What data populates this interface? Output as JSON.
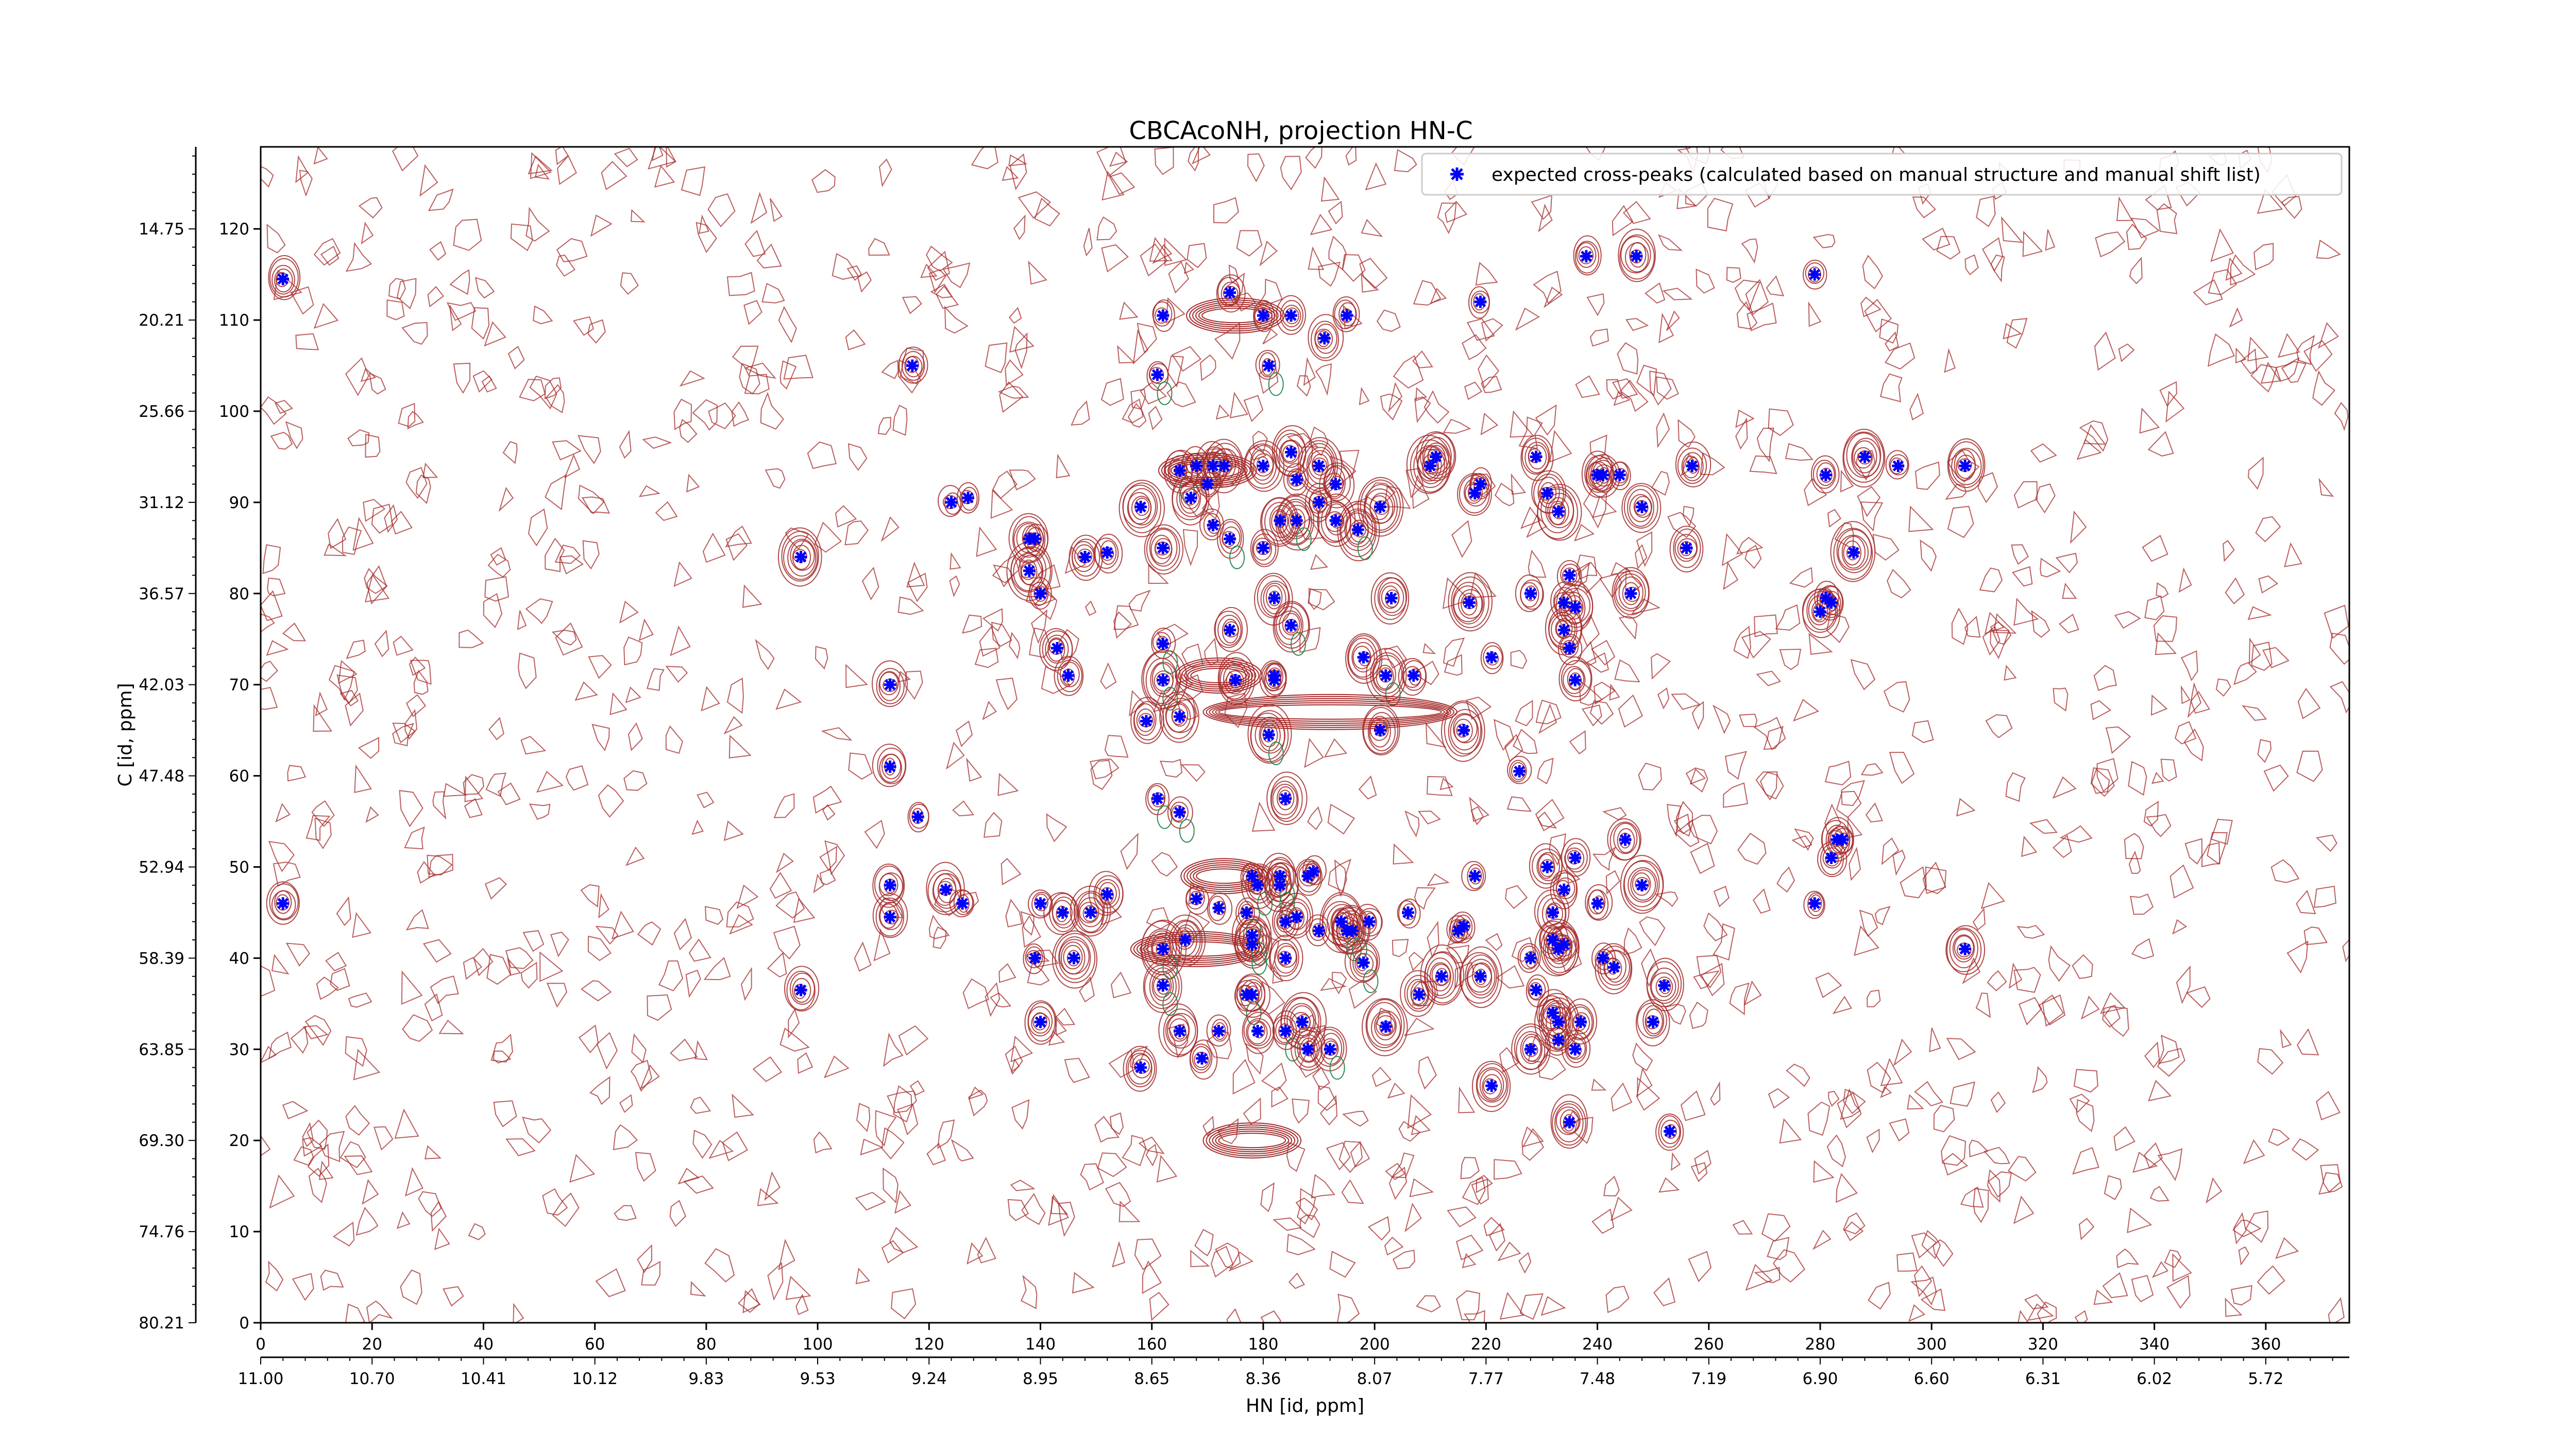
{
  "chart_data": {
    "type": "scatter",
    "title": "CBCAcoNH, projection HN-C",
    "xlabel": "HN [id, ppm]",
    "ylabel": "C [id, ppm]",
    "xlim": [
      0,
      375
    ],
    "ylim": [
      0,
      129
    ],
    "x_ticks": [
      0,
      20,
      40,
      60,
      80,
      100,
      120,
      140,
      160,
      180,
      200,
      220,
      240,
      260,
      280,
      300,
      320,
      340,
      360
    ],
    "y_ticks": [
      0,
      10,
      20,
      30,
      40,
      50,
      60,
      70,
      80,
      90,
      100,
      110,
      120
    ],
    "x_secondary_ticks": [
      {
        "x": 0,
        "label": "11.00"
      },
      {
        "x": 20,
        "label": "10.70"
      },
      {
        "x": 40,
        "label": "10.41"
      },
      {
        "x": 60,
        "label": "10.12"
      },
      {
        "x": 80,
        "label": "9.83"
      },
      {
        "x": 100,
        "label": "9.53"
      },
      {
        "x": 120,
        "label": "9.24"
      },
      {
        "x": 140,
        "label": "8.95"
      },
      {
        "x": 160,
        "label": "8.65"
      },
      {
        "x": 180,
        "label": "8.36"
      },
      {
        "x": 200,
        "label": "8.07"
      },
      {
        "x": 220,
        "label": "7.77"
      },
      {
        "x": 240,
        "label": "7.48"
      },
      {
        "x": 260,
        "label": "7.19"
      },
      {
        "x": 280,
        "label": "6.90"
      },
      {
        "x": 300,
        "label": "6.60"
      },
      {
        "x": 320,
        "label": "6.31"
      },
      {
        "x": 340,
        "label": "6.02"
      },
      {
        "x": 360,
        "label": "5.72"
      }
    ],
    "y_secondary_ticks": [
      {
        "y": 0,
        "label": "80.21"
      },
      {
        "y": 10,
        "label": "74.76"
      },
      {
        "y": 20,
        "label": "69.30"
      },
      {
        "y": 30,
        "label": "63.85"
      },
      {
        "y": 40,
        "label": "58.39"
      },
      {
        "y": 50,
        "label": "52.94"
      },
      {
        "y": 60,
        "label": "47.48"
      },
      {
        "y": 70,
        "label": "42.03"
      },
      {
        "y": 80,
        "label": "36.57"
      },
      {
        "y": 90,
        "label": "31.12"
      },
      {
        "y": 100,
        "label": "25.66"
      },
      {
        "y": 110,
        "label": "20.21"
      },
      {
        "y": 120,
        "label": "14.75"
      }
    ],
    "legend": {
      "position": "top-right",
      "entries": [
        "expected cross-peaks (calculated based on manual structure and manual shift list)"
      ]
    },
    "grid": false,
    "colors": {
      "markers": "#0000ff",
      "contour_positive": "#a52a2a",
      "contour_negative": "#2e8b57"
    },
    "series": [
      {
        "name": "expected cross-peaks (calculated based on manual structure and manual shift list)",
        "points": [
          [
            4,
            114.5
          ],
          [
            4,
            46
          ],
          [
            97,
            84
          ],
          [
            97,
            36.5
          ],
          [
            117,
            105
          ],
          [
            113,
            70
          ],
          [
            113,
            61
          ],
          [
            118,
            55.5
          ],
          [
            113,
            48
          ],
          [
            113,
            44.5
          ],
          [
            123,
            47.5
          ],
          [
            126,
            46
          ],
          [
            124,
            90
          ],
          [
            127,
            90.5
          ],
          [
            138,
            86
          ],
          [
            138,
            82.5
          ],
          [
            140,
            80
          ],
          [
            139,
            86
          ],
          [
            140,
            46
          ],
          [
            139,
            40
          ],
          [
            140,
            33
          ],
          [
            143,
            74
          ],
          [
            145,
            71
          ],
          [
            148,
            84
          ],
          [
            152,
            84.5
          ],
          [
            144,
            45
          ],
          [
            149,
            45
          ],
          [
            152,
            47
          ],
          [
            146,
            40
          ],
          [
            158,
            89.5
          ],
          [
            159,
            66
          ],
          [
            158,
            28
          ],
          [
            161,
            104
          ],
          [
            161,
            57.5
          ],
          [
            162,
            110.5
          ],
          [
            162,
            70.5
          ],
          [
            162,
            74.5
          ],
          [
            162,
            85
          ],
          [
            162,
            37
          ],
          [
            162,
            41
          ],
          [
            165,
            93.5
          ],
          [
            165,
            66.5
          ],
          [
            165,
            56
          ],
          [
            165,
            32
          ],
          [
            166,
            42
          ],
          [
            167,
            90.5
          ],
          [
            168,
            94
          ],
          [
            168,
            46.5
          ],
          [
            169,
            29
          ],
          [
            170,
            92
          ],
          [
            171,
            94
          ],
          [
            171,
            87.5
          ],
          [
            172,
            32
          ],
          [
            172,
            45.5
          ],
          [
            173,
            94
          ],
          [
            174,
            113
          ],
          [
            174,
            86
          ],
          [
            174,
            76
          ],
          [
            175,
            70.5
          ],
          [
            177,
            45
          ],
          [
            177,
            36
          ],
          [
            178,
            36
          ],
          [
            178,
            49
          ],
          [
            178,
            42.5
          ],
          [
            178,
            41.5
          ],
          [
            179,
            48
          ],
          [
            179,
            32
          ],
          [
            180,
            110.5
          ],
          [
            180,
            85
          ],
          [
            180,
            94
          ],
          [
            181,
            105
          ],
          [
            182,
            79.5
          ],
          [
            182,
            70.5
          ],
          [
            182,
            71
          ],
          [
            181,
            64.5
          ],
          [
            183,
            88
          ],
          [
            183,
            49
          ],
          [
            183,
            48
          ],
          [
            184,
            57.5
          ],
          [
            184,
            44
          ],
          [
            184,
            40
          ],
          [
            184,
            32
          ],
          [
            185,
            110.5
          ],
          [
            185,
            95.5
          ],
          [
            185,
            76.5
          ],
          [
            186,
            92.5
          ],
          [
            186,
            88
          ],
          [
            186,
            44.5
          ],
          [
            187,
            33
          ],
          [
            188,
            30
          ],
          [
            188,
            49
          ],
          [
            189,
            49.5
          ],
          [
            190,
            43
          ],
          [
            190,
            90
          ],
          [
            190,
            94
          ],
          [
            191,
            108
          ],
          [
            192,
            30
          ],
          [
            193,
            92
          ],
          [
            193,
            88
          ],
          [
            194,
            44
          ],
          [
            195,
            110.5
          ],
          [
            195,
            43
          ],
          [
            196,
            43
          ],
          [
            198,
            73
          ],
          [
            197,
            87
          ],
          [
            198,
            39.5
          ],
          [
            199,
            44
          ],
          [
            201,
            89.5
          ],
          [
            201,
            65
          ],
          [
            202,
            32.5
          ],
          [
            202,
            71
          ],
          [
            203,
            79.5
          ],
          [
            206,
            45
          ],
          [
            207,
            71
          ],
          [
            210,
            94
          ],
          [
            211,
            95
          ],
          [
            212,
            38
          ],
          [
            208,
            36
          ],
          [
            215,
            43
          ],
          [
            216,
            43.5
          ],
          [
            216,
            65
          ],
          [
            218,
            91
          ],
          [
            219,
            92
          ],
          [
            217,
            79
          ],
          [
            218,
            49
          ],
          [
            219,
            38
          ],
          [
            221,
            26
          ],
          [
            219,
            112
          ],
          [
            221,
            73
          ],
          [
            226,
            60.5
          ],
          [
            229,
            95
          ],
          [
            228,
            80
          ],
          [
            228,
            40
          ],
          [
            229,
            36.5
          ],
          [
            228,
            30
          ],
          [
            231,
            91
          ],
          [
            231,
            50
          ],
          [
            232,
            42
          ],
          [
            232,
            34
          ],
          [
            232,
            45
          ],
          [
            233,
            89
          ],
          [
            234,
            47.5
          ],
          [
            233,
            41
          ],
          [
            234,
            41.5
          ],
          [
            233,
            31
          ],
          [
            233,
            33
          ],
          [
            234,
            79
          ],
          [
            234,
            76
          ],
          [
            235,
            74
          ],
          [
            235,
            82
          ],
          [
            235,
            22
          ],
          [
            236,
            70.5
          ],
          [
            236,
            78.5
          ],
          [
            236,
            51
          ],
          [
            237,
            33
          ],
          [
            236,
            30
          ],
          [
            238,
            117
          ],
          [
            240,
            93
          ],
          [
            240,
            46
          ],
          [
            241,
            40
          ],
          [
            241,
            93
          ],
          [
            243,
            39
          ],
          [
            244,
            93
          ],
          [
            246,
            80
          ],
          [
            245,
            53
          ],
          [
            247,
            117
          ],
          [
            248,
            48
          ],
          [
            248,
            89.5
          ],
          [
            250,
            33
          ],
          [
            252,
            37
          ],
          [
            253,
            21
          ],
          [
            256,
            85
          ],
          [
            257,
            94
          ],
          [
            279,
            115
          ],
          [
            279,
            46
          ],
          [
            280,
            78
          ],
          [
            281,
            79.5
          ],
          [
            282,
            79
          ],
          [
            281,
            93
          ],
          [
            282,
            51
          ],
          [
            283,
            53
          ],
          [
            284,
            53
          ],
          [
            286,
            84.5
          ],
          [
            288,
            95
          ],
          [
            294,
            94
          ],
          [
            306,
            94
          ],
          [
            306,
            41
          ]
        ]
      }
    ]
  }
}
